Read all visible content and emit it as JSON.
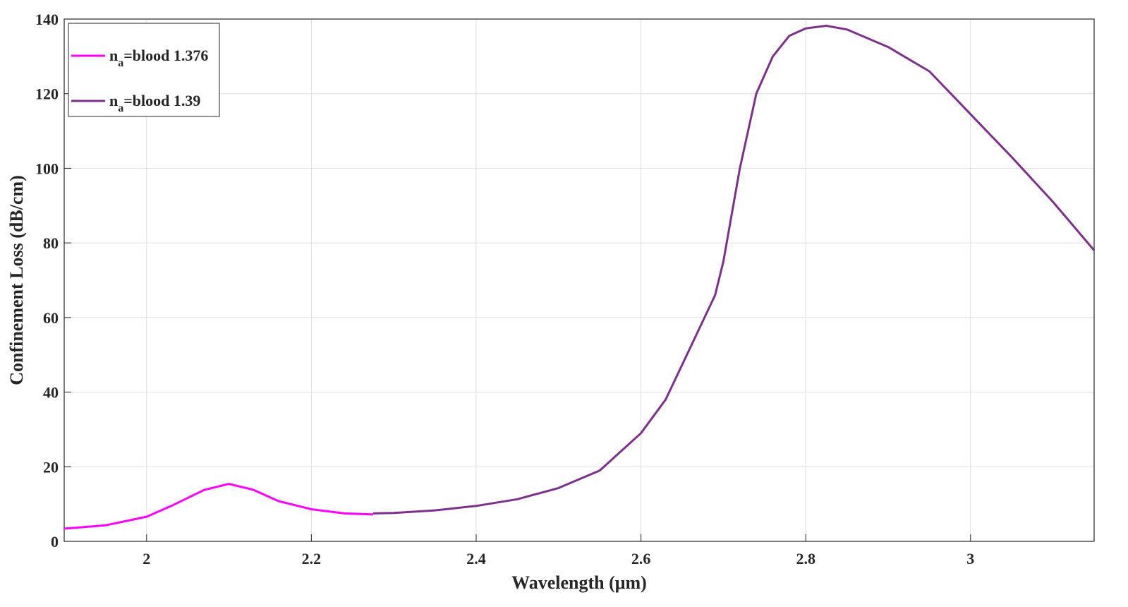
{
  "chart_data": {
    "type": "line",
    "xlabel": "Wavelength (μm)",
    "ylabel": "Confinement Loss (dB/cm)",
    "xlim": [
      1.9,
      3.15
    ],
    "xticks": [
      2,
      2.2,
      2.4,
      2.6,
      2.8,
      3
    ],
    "ylim": [
      0,
      140
    ],
    "yticks": [
      0,
      20,
      40,
      60,
      80,
      100,
      120,
      140
    ],
    "grid": true,
    "legend": "upper left",
    "series": [
      {
        "name": "na=blood 1.376",
        "color": "#ff00ff",
        "x": [
          1.9,
          1.95,
          2.0,
          2.03,
          2.07,
          2.1,
          2.13,
          2.16,
          2.2,
          2.24,
          2.275
        ],
        "values": [
          3.4,
          4.3,
          6.6,
          9.5,
          13.8,
          15.4,
          13.8,
          10.8,
          8.6,
          7.5,
          7.2
        ]
      },
      {
        "name": "na=blood 1.39",
        "color": "#7e2f8e",
        "x": [
          2.275,
          2.3,
          2.35,
          2.4,
          2.45,
          2.5,
          2.55,
          2.6,
          2.63,
          2.66,
          2.69,
          2.7,
          2.72,
          2.74,
          2.76,
          2.78,
          2.8,
          2.825,
          2.85,
          2.9,
          2.95,
          3.0,
          3.05,
          3.1,
          3.15
        ],
        "values": [
          7.5,
          7.6,
          8.3,
          9.5,
          11.3,
          14.3,
          19,
          29,
          38,
          52,
          66,
          75,
          100,
          120,
          130,
          135.5,
          137.5,
          138.2,
          137.2,
          132.5,
          126,
          114.5,
          103,
          91,
          78
        ]
      }
    ]
  }
}
